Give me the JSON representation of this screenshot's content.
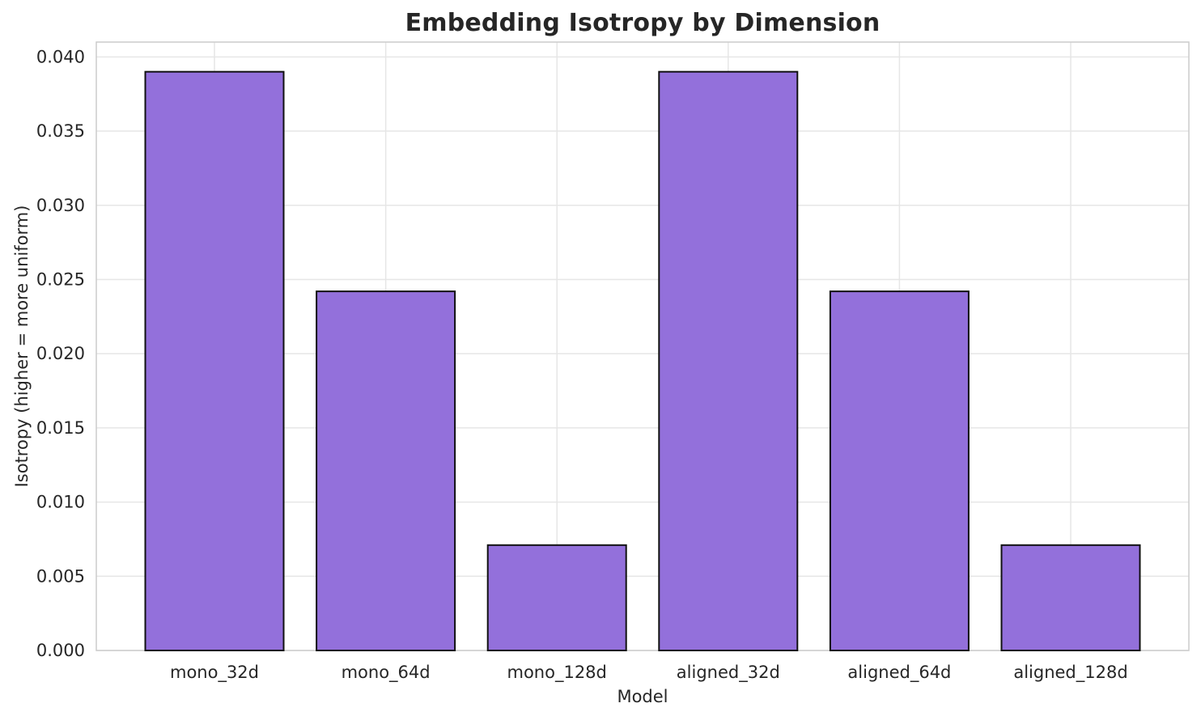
{
  "chart_data": {
    "type": "bar",
    "title": "Embedding Isotropy by Dimension",
    "xlabel": "Model",
    "ylabel": "Isotropy (higher = more uniform)",
    "categories": [
      "mono_32d",
      "mono_64d",
      "mono_128d",
      "aligned_32d",
      "aligned_64d",
      "aligned_128d"
    ],
    "values": [
      0.039,
      0.0242,
      0.0071,
      0.039,
      0.0242,
      0.0071
    ],
    "ylim": [
      0,
      0.041
    ],
    "ytick_step": 0.005,
    "ytick_labels": [
      "0.000",
      "0.005",
      "0.010",
      "0.015",
      "0.020",
      "0.025",
      "0.030",
      "0.035",
      "0.040"
    ],
    "grid": true,
    "legend": "none",
    "colors": {
      "bar_fill": "#9370DB",
      "bar_edge": "#111111",
      "grid_line": "#e6e6e6",
      "spine": "#cccccc",
      "text": "#262626",
      "background": "#ffffff"
    }
  }
}
